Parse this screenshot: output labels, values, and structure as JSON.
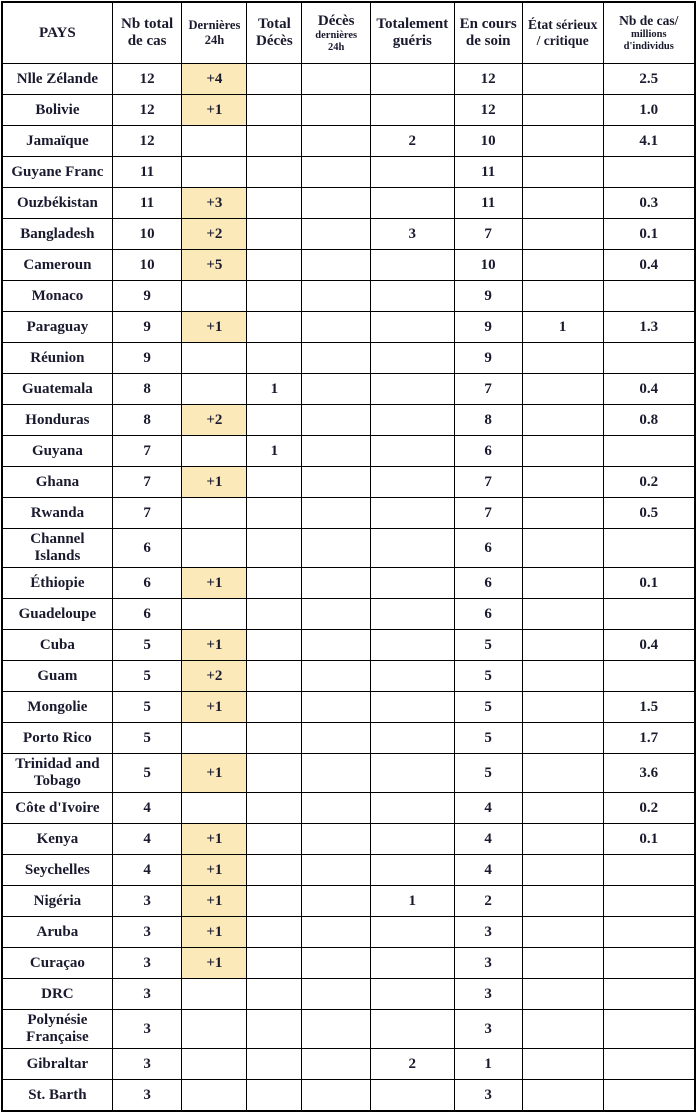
{
  "colors": {
    "highlight_cell": "#fce9ba",
    "border": "#000000",
    "text": "#1a1a2e",
    "background": "#ffffff"
  },
  "chart_data": {
    "type": "table",
    "highlight_rule": "cells with a value in the 'Dernières 24h' column have a pale yellow background",
    "columns": [
      {
        "key": "pays",
        "label": "PAYS",
        "lines": [
          {
            "t": "PAYS",
            "s": "lg"
          }
        ]
      },
      {
        "key": "total_cases",
        "label": "Nb total de cas",
        "lines": [
          {
            "t": "Nb total",
            "s": "lg"
          },
          {
            "t": "de cas",
            "s": "lg"
          }
        ]
      },
      {
        "key": "new_cases",
        "label": "Dernières 24h",
        "lines": [
          {
            "t": "Dernières",
            "s": "md"
          },
          {
            "t": "24h",
            "s": "md"
          }
        ]
      },
      {
        "key": "total_deaths",
        "label": "Total Décès",
        "lines": [
          {
            "t": "Total",
            "s": "lg"
          },
          {
            "t": "Décès",
            "s": "lg"
          }
        ]
      },
      {
        "key": "new_deaths",
        "label": "Décès dernières 24h",
        "lines": [
          {
            "t": "Décès",
            "s": "lg"
          },
          {
            "t": "dernières",
            "s": "sm"
          },
          {
            "t": "24h",
            "s": "sm"
          }
        ]
      },
      {
        "key": "recovered",
        "label": "Totalement guéris",
        "lines": [
          {
            "t": "Totalement",
            "s": "lg"
          },
          {
            "t": "guéris",
            "s": "lg"
          }
        ]
      },
      {
        "key": "active",
        "label": "En cours de soin",
        "lines": [
          {
            "t": "En cours",
            "s": "lg"
          },
          {
            "t": "de soin",
            "s": "lg"
          }
        ]
      },
      {
        "key": "serious",
        "label": "État sérieux / critique",
        "lines": [
          {
            "t": "État sérieux",
            "s": "md2"
          },
          {
            "t": "/ critique",
            "s": "md2"
          }
        ]
      },
      {
        "key": "per_million",
        "label": "Nb de cas/ millions d'individus",
        "lines": [
          {
            "t": "Nb de cas/",
            "s": "md2"
          },
          {
            "t": "millions",
            "s": "sm"
          },
          {
            "t": "d'individus",
            "s": "sm"
          }
        ]
      }
    ],
    "rows": [
      {
        "pays": "Nlle Zélande",
        "total_cases": "12",
        "new_cases": "+4",
        "total_deaths": "",
        "new_deaths": "",
        "recovered": "",
        "active": "12",
        "serious": "",
        "per_million": "2.5"
      },
      {
        "pays": "Bolivie",
        "total_cases": "12",
        "new_cases": "+1",
        "total_deaths": "",
        "new_deaths": "",
        "recovered": "",
        "active": "12",
        "serious": "",
        "per_million": "1.0"
      },
      {
        "pays": "Jamaïque",
        "total_cases": "12",
        "new_cases": "",
        "total_deaths": "",
        "new_deaths": "",
        "recovered": "2",
        "active": "10",
        "serious": "",
        "per_million": "4.1"
      },
      {
        "pays": "Guyane Franc",
        "total_cases": "11",
        "new_cases": "",
        "total_deaths": "",
        "new_deaths": "",
        "recovered": "",
        "active": "11",
        "serious": "",
        "per_million": ""
      },
      {
        "pays": "Ouzbékistan",
        "total_cases": "11",
        "new_cases": "+3",
        "total_deaths": "",
        "new_deaths": "",
        "recovered": "",
        "active": "11",
        "serious": "",
        "per_million": "0.3"
      },
      {
        "pays": "Bangladesh",
        "total_cases": "10",
        "new_cases": "+2",
        "total_deaths": "",
        "new_deaths": "",
        "recovered": "3",
        "active": "7",
        "serious": "",
        "per_million": "0.1"
      },
      {
        "pays": "Cameroun",
        "total_cases": "10",
        "new_cases": "+5",
        "total_deaths": "",
        "new_deaths": "",
        "recovered": "",
        "active": "10",
        "serious": "",
        "per_million": "0.4"
      },
      {
        "pays": "Monaco",
        "total_cases": "9",
        "new_cases": "",
        "total_deaths": "",
        "new_deaths": "",
        "recovered": "",
        "active": "9",
        "serious": "",
        "per_million": ""
      },
      {
        "pays": "Paraguay",
        "total_cases": "9",
        "new_cases": "+1",
        "total_deaths": "",
        "new_deaths": "",
        "recovered": "",
        "active": "9",
        "serious": "1",
        "per_million": "1.3"
      },
      {
        "pays": "Réunion",
        "total_cases": "9",
        "new_cases": "",
        "total_deaths": "",
        "new_deaths": "",
        "recovered": "",
        "active": "9",
        "serious": "",
        "per_million": ""
      },
      {
        "pays": "Guatemala",
        "total_cases": "8",
        "new_cases": "",
        "total_deaths": "1",
        "new_deaths": "",
        "recovered": "",
        "active": "7",
        "serious": "",
        "per_million": "0.4"
      },
      {
        "pays": "Honduras",
        "total_cases": "8",
        "new_cases": "+2",
        "total_deaths": "",
        "new_deaths": "",
        "recovered": "",
        "active": "8",
        "serious": "",
        "per_million": "0.8"
      },
      {
        "pays": "Guyana",
        "total_cases": "7",
        "new_cases": "",
        "total_deaths": "1",
        "new_deaths": "",
        "recovered": "",
        "active": "6",
        "serious": "",
        "per_million": ""
      },
      {
        "pays": "Ghana",
        "total_cases": "7",
        "new_cases": "+1",
        "total_deaths": "",
        "new_deaths": "",
        "recovered": "",
        "active": "7",
        "serious": "",
        "per_million": "0.2"
      },
      {
        "pays": "Rwanda",
        "total_cases": "7",
        "new_cases": "",
        "total_deaths": "",
        "new_deaths": "",
        "recovered": "",
        "active": "7",
        "serious": "",
        "per_million": "0.5"
      },
      {
        "pays": "Channel Islands",
        "total_cases": "6",
        "new_cases": "",
        "total_deaths": "",
        "new_deaths": "",
        "recovered": "",
        "active": "6",
        "serious": "",
        "per_million": ""
      },
      {
        "pays": "Éthiopie",
        "total_cases": "6",
        "new_cases": "+1",
        "total_deaths": "",
        "new_deaths": "",
        "recovered": "",
        "active": "6",
        "serious": "",
        "per_million": "0.1"
      },
      {
        "pays": "Guadeloupe",
        "total_cases": "6",
        "new_cases": "",
        "total_deaths": "",
        "new_deaths": "",
        "recovered": "",
        "active": "6",
        "serious": "",
        "per_million": ""
      },
      {
        "pays": "Cuba",
        "total_cases": "5",
        "new_cases": "+1",
        "total_deaths": "",
        "new_deaths": "",
        "recovered": "",
        "active": "5",
        "serious": "",
        "per_million": "0.4"
      },
      {
        "pays": "Guam",
        "total_cases": "5",
        "new_cases": "+2",
        "total_deaths": "",
        "new_deaths": "",
        "recovered": "",
        "active": "5",
        "serious": "",
        "per_million": ""
      },
      {
        "pays": "Mongolie",
        "total_cases": "5",
        "new_cases": "+1",
        "total_deaths": "",
        "new_deaths": "",
        "recovered": "",
        "active": "5",
        "serious": "",
        "per_million": "1.5"
      },
      {
        "pays": "Porto Rico",
        "total_cases": "5",
        "new_cases": "",
        "total_deaths": "",
        "new_deaths": "",
        "recovered": "",
        "active": "5",
        "serious": "",
        "per_million": "1.7"
      },
      {
        "pays": "Trinidad and Tobago",
        "total_cases": "5",
        "new_cases": "+1",
        "total_deaths": "",
        "new_deaths": "",
        "recovered": "",
        "active": "5",
        "serious": "",
        "per_million": "3.6"
      },
      {
        "pays": "Côte d'Ivoire",
        "total_cases": "4",
        "new_cases": "",
        "total_deaths": "",
        "new_deaths": "",
        "recovered": "",
        "active": "4",
        "serious": "",
        "per_million": "0.2"
      },
      {
        "pays": "Kenya",
        "total_cases": "4",
        "new_cases": "+1",
        "total_deaths": "",
        "new_deaths": "",
        "recovered": "",
        "active": "4",
        "serious": "",
        "per_million": "0.1"
      },
      {
        "pays": "Seychelles",
        "total_cases": "4",
        "new_cases": "+1",
        "total_deaths": "",
        "new_deaths": "",
        "recovered": "",
        "active": "4",
        "serious": "",
        "per_million": ""
      },
      {
        "pays": "Nigéria",
        "total_cases": "3",
        "new_cases": "+1",
        "total_deaths": "",
        "new_deaths": "",
        "recovered": "1",
        "active": "2",
        "serious": "",
        "per_million": ""
      },
      {
        "pays": "Aruba",
        "total_cases": "3",
        "new_cases": "+1",
        "total_deaths": "",
        "new_deaths": "",
        "recovered": "",
        "active": "3",
        "serious": "",
        "per_million": ""
      },
      {
        "pays": "Curaçao",
        "total_cases": "3",
        "new_cases": "+1",
        "total_deaths": "",
        "new_deaths": "",
        "recovered": "",
        "active": "3",
        "serious": "",
        "per_million": ""
      },
      {
        "pays": "DRC",
        "total_cases": "3",
        "new_cases": "",
        "total_deaths": "",
        "new_deaths": "",
        "recovered": "",
        "active": "3",
        "serious": "",
        "per_million": ""
      },
      {
        "pays": "Polynésie Française",
        "total_cases": "3",
        "new_cases": "",
        "total_deaths": "",
        "new_deaths": "",
        "recovered": "",
        "active": "3",
        "serious": "",
        "per_million": ""
      },
      {
        "pays": "Gibraltar",
        "total_cases": "3",
        "new_cases": "",
        "total_deaths": "",
        "new_deaths": "",
        "recovered": "2",
        "active": "1",
        "serious": "",
        "per_million": ""
      },
      {
        "pays": "St. Barth",
        "total_cases": "3",
        "new_cases": "",
        "total_deaths": "",
        "new_deaths": "",
        "recovered": "",
        "active": "3",
        "serious": "",
        "per_million": ""
      }
    ]
  }
}
